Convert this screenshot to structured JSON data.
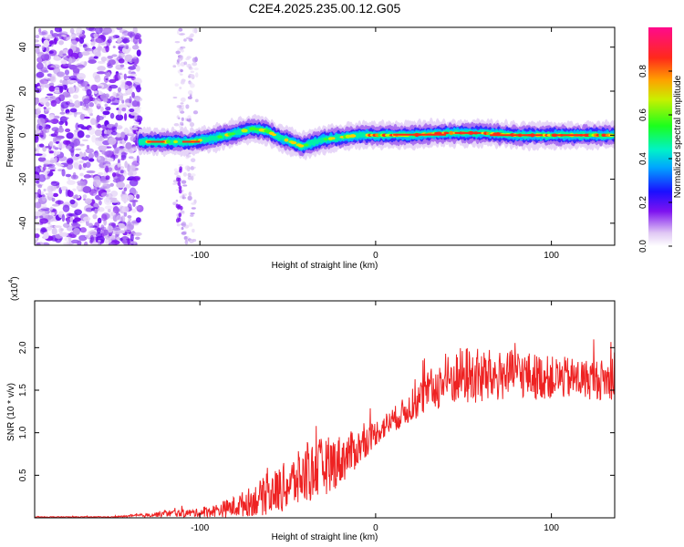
{
  "title": "C2E4.2025.235.00.12.G05",
  "chart_data": [
    {
      "type": "heatmap",
      "name": "spectrogram",
      "xlabel": "Height of straight line (km)",
      "ylabel": "Frequency (Hz)",
      "xlim": [
        -194,
        136
      ],
      "ylim": [
        -50,
        49
      ],
      "xticks": [
        -100,
        0,
        100
      ],
      "xtick_labels": [
        "-100",
        "0",
        "100"
      ],
      "yticks": [
        -40,
        -20,
        0,
        20,
        40
      ],
      "ytick_labels": [
        "-40",
        "-20",
        "0",
        "20",
        "40"
      ],
      "colorbar": {
        "label": "Normalized spectral amplitude",
        "ticks": [
          0.0,
          0.2,
          0.4,
          0.6,
          0.8
        ],
        "tick_labels": [
          "0.0",
          "0.2",
          "0.4",
          "0.6",
          "0.8"
        ],
        "range": [
          0,
          1
        ]
      },
      "ridge_x": [
        -134,
        -120,
        -105,
        -90,
        -80,
        -70,
        -62,
        -55,
        -48,
        -42,
        -38,
        -30,
        -20,
        -10,
        0,
        20,
        40,
        60,
        80,
        100,
        120,
        136
      ],
      "ridge_freq": [
        -3,
        -3,
        -3,
        -1,
        1,
        3,
        2,
        -1,
        -3,
        -5,
        -4,
        -2,
        -1,
        0,
        0,
        0,
        1,
        1,
        0,
        0,
        0,
        0
      ],
      "noise_region": [
        -194,
        -134
      ],
      "noise_columns_x": [
        -112,
        -108,
        -104
      ]
    },
    {
      "type": "line",
      "name": "snr",
      "xlabel": "Height of straight line (km)",
      "ylabel": "SNR (10 * v/v)",
      "scale_label": "(x10",
      "scale_exp": "4",
      "xlim": [
        -194,
        136
      ],
      "ylim": [
        0,
        2.55
      ],
      "xticks": [
        -100,
        0,
        100
      ],
      "xtick_labels": [
        "-100",
        "0",
        "100"
      ],
      "yticks": [
        0.5,
        1.0,
        1.5,
        2.0
      ],
      "ytick_labels": [
        "0.5",
        "1.0",
        "1.5",
        "2.0"
      ],
      "color": "#ee2222",
      "envelope_x": [
        -194,
        -150,
        -130,
        -120,
        -100,
        -90,
        -80,
        -70,
        -60,
        -50,
        -40,
        -30,
        -20,
        -10,
        0,
        10,
        20,
        30,
        40,
        50,
        60,
        70,
        80,
        90,
        100,
        110,
        120,
        136
      ],
      "envelope_mean": [
        0.01,
        0.01,
        0.03,
        0.05,
        0.06,
        0.09,
        0.13,
        0.2,
        0.28,
        0.38,
        0.5,
        0.6,
        0.68,
        0.82,
        1.0,
        1.15,
        1.3,
        1.48,
        1.6,
        1.68,
        1.65,
        1.66,
        1.7,
        1.66,
        1.65,
        1.64,
        1.63,
        1.62
      ],
      "envelope_spread": [
        0.005,
        0.005,
        0.02,
        0.04,
        0.05,
        0.08,
        0.13,
        0.18,
        0.25,
        0.3,
        0.35,
        0.35,
        0.3,
        0.22,
        0.15,
        0.15,
        0.18,
        0.25,
        0.3,
        0.35,
        0.35,
        0.3,
        0.28,
        0.28,
        0.25,
        0.25,
        0.24,
        0.24
      ]
    }
  ]
}
